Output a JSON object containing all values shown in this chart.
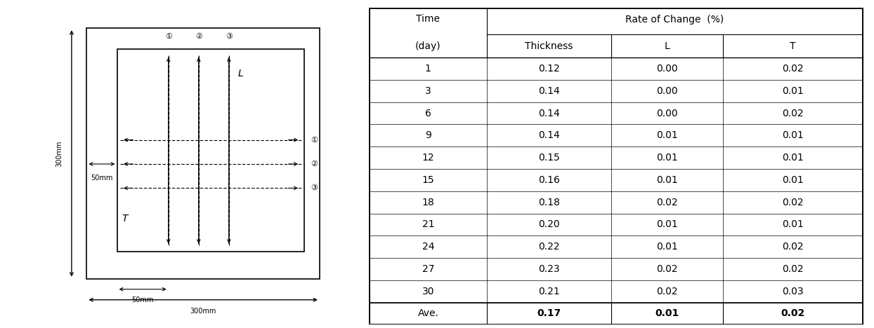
{
  "table_header_top": "Rate of Change (%)",
  "table_rows": [
    [
      "1",
      "0.12",
      "0.00",
      "0.02"
    ],
    [
      "3",
      "0.14",
      "0.00",
      "0.01"
    ],
    [
      "6",
      "0.14",
      "0.00",
      "0.02"
    ],
    [
      "9",
      "0.14",
      "0.01",
      "0.01"
    ],
    [
      "12",
      "0.15",
      "0.01",
      "0.01"
    ],
    [
      "15",
      "0.16",
      "0.01",
      "0.01"
    ],
    [
      "18",
      "0.18",
      "0.02",
      "0.02"
    ],
    [
      "21",
      "0.20",
      "0.01",
      "0.01"
    ],
    [
      "24",
      "0.22",
      "0.01",
      "0.02"
    ],
    [
      "27",
      "0.23",
      "0.02",
      "0.02"
    ],
    [
      "30",
      "0.21",
      "0.02",
      "0.03"
    ]
  ],
  "table_footer": [
    "Ave.",
    "0.17",
    "0.01",
    "0.02"
  ],
  "bg_color": "#ffffff",
  "line_color": "#000000",
  "dim_300mm_v": "300mm",
  "dim_300mm_h": "300mm",
  "dim_50mm_h": "50mm",
  "dim_50mm_v": "50mm",
  "L_label": "L",
  "T_label": "T",
  "circles_top": [
    "①",
    "②",
    "③"
  ],
  "circles_right": [
    "①",
    "②",
    "③"
  ]
}
